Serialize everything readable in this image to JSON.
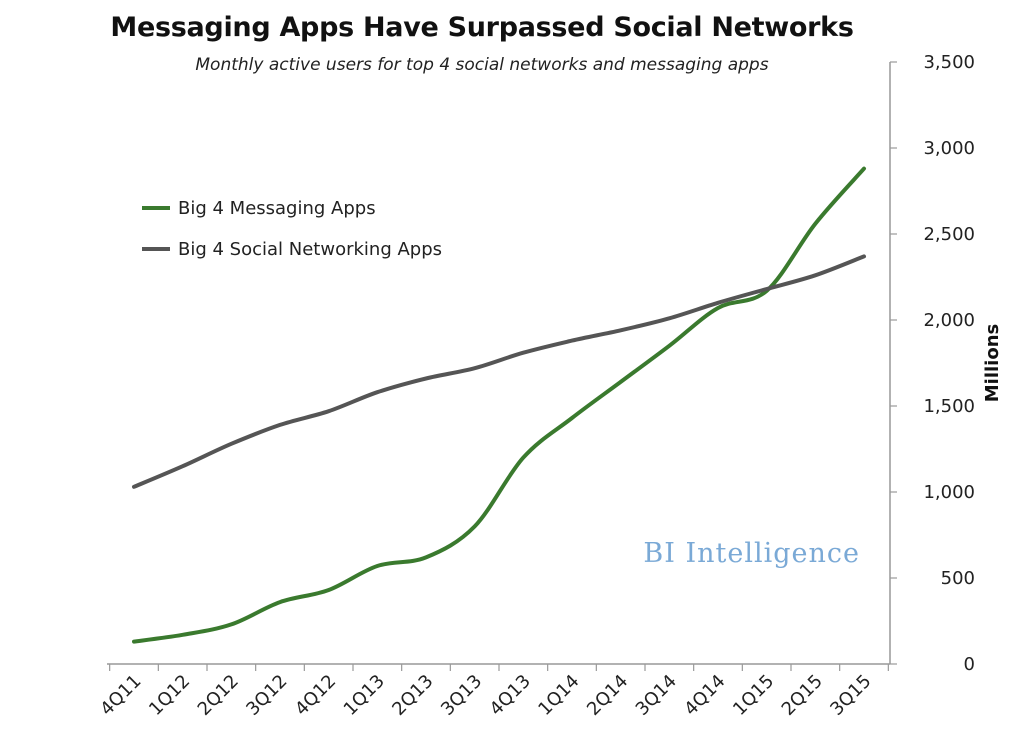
{
  "colors": {
    "messaging": "#3a7a2e",
    "social": "#555555",
    "axis": "#999999",
    "watermark": "#7aa9d6"
  },
  "watermark": {
    "text": "BI Intelligence"
  },
  "chart_data": {
    "type": "line",
    "title": "Messaging Apps Have Surpassed Social Networks",
    "subtitle": "Monthly active users for top 4 social networks and messaging apps",
    "ylabel": "Millions",
    "xlabel": "",
    "ylim": [
      0,
      3500
    ],
    "yticks": [
      0,
      500,
      1000,
      1500,
      2000,
      2500,
      3000,
      3500
    ],
    "ytick_labels": [
      "0",
      "500",
      "1,000",
      "1,500",
      "2,000",
      "2,500",
      "3,000",
      "3,500"
    ],
    "y_axis_position": "right",
    "grid": false,
    "legend": "top-left",
    "categories": [
      "4Q11",
      "1Q12",
      "2Q12",
      "3Q12",
      "4Q12",
      "1Q13",
      "2Q13",
      "3Q13",
      "4Q13",
      "1Q14",
      "2Q14",
      "3Q14",
      "4Q14",
      "1Q15",
      "2Q15",
      "3Q15"
    ],
    "series": [
      {
        "name": "Big 4 Messaging Apps",
        "values": [
          130,
          170,
          230,
          360,
          430,
          570,
          620,
          800,
          1200,
          1430,
          1640,
          1850,
          2070,
          2170,
          2560,
          2880
        ]
      },
      {
        "name": "Big 4 Social Networking Apps",
        "values": [
          1030,
          1150,
          1280,
          1390,
          1470,
          1580,
          1660,
          1720,
          1810,
          1880,
          1940,
          2010,
          2100,
          2180,
          2260,
          2370
        ]
      }
    ]
  }
}
